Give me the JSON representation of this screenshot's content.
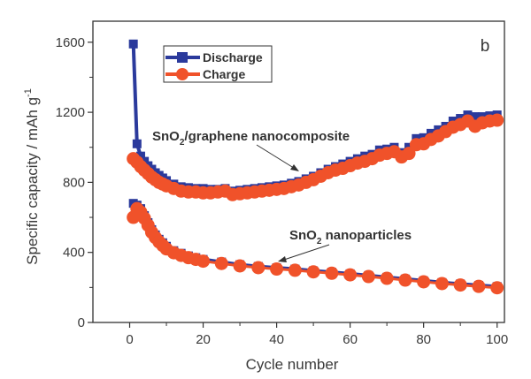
{
  "chart_data": {
    "type": "line",
    "title": "",
    "panel_label": "b",
    "xlabel": "Cycle number",
    "ylabel": "Specific capacity / mAh g",
    "ylabel_superscript": "-1",
    "xlim": [
      -10,
      102
    ],
    "ylim": [
      0,
      1720
    ],
    "xticks": [
      0,
      20,
      40,
      60,
      80,
      100
    ],
    "xtick_labels": [
      "0",
      "20",
      "40",
      "60",
      "80",
      "100"
    ],
    "xminor_ticks": [
      10,
      30,
      50,
      70,
      90
    ],
    "yticks": [
      0,
      400,
      800,
      1200,
      1600
    ],
    "ytick_labels": [
      "0",
      "400",
      "800",
      "1200",
      "1600"
    ],
    "yminor_ticks": [
      200,
      600,
      1000,
      1400
    ],
    "grid": false,
    "legend": {
      "placement": "top-left",
      "entries": [
        {
          "label": "Discharge",
          "marker": "square",
          "color": "#2b3a9c"
        },
        {
          "label": "Charge",
          "marker": "circle",
          "color": "#f0522a"
        }
      ]
    },
    "annotations": [
      {
        "text_main": "SnO",
        "subscript": "2",
        "text_rest": "/graphene nanocomposite",
        "target": "SnO2/graphene nanocomposite curves",
        "arrow_to": [
          48,
          770
        ]
      },
      {
        "text_main": "SnO",
        "subscript": "2",
        "text_rest": " nanoparticles",
        "target": "SnO2 nanoparticles curves",
        "arrow_to": [
          38,
          318
        ]
      }
    ],
    "series": [
      {
        "name": "SnO2/graphene nanocomposite - Discharge",
        "color": "#2b3a9c",
        "x": [
          1,
          2,
          3,
          4,
          5,
          6,
          7,
          8,
          9,
          10,
          12,
          14,
          16,
          18,
          20,
          22,
          24,
          26,
          28,
          30,
          32,
          34,
          36,
          38,
          40,
          42,
          44,
          46,
          48,
          50,
          52,
          54,
          56,
          58,
          60,
          62,
          64,
          66,
          68,
          70,
          72,
          74,
          76,
          78,
          80,
          82,
          84,
          86,
          88,
          90,
          92,
          94,
          96,
          98,
          100
        ],
        "y": [
          1590,
          1020,
          950,
          920,
          895,
          875,
          855,
          840,
          825,
          810,
          790,
          775,
          770,
          765,
          765,
          760,
          760,
          765,
          750,
          755,
          760,
          765,
          770,
          775,
          780,
          785,
          795,
          805,
          820,
          835,
          855,
          875,
          890,
          905,
          920,
          935,
          950,
          960,
          985,
          990,
          1000,
          970,
          1000,
          1050,
          1055,
          1080,
          1100,
          1120,
          1150,
          1165,
          1185,
          1175,
          1175,
          1180,
          1185
        ]
      },
      {
        "name": "SnO2/graphene nanocomposite - Charge",
        "color": "#f0522a",
        "x": [
          1,
          2,
          3,
          4,
          5,
          6,
          7,
          8,
          9,
          10,
          12,
          14,
          16,
          18,
          20,
          22,
          24,
          26,
          28,
          30,
          32,
          34,
          36,
          38,
          40,
          42,
          44,
          46,
          48,
          50,
          52,
          54,
          56,
          58,
          60,
          62,
          64,
          66,
          68,
          70,
          72,
          74,
          76,
          78,
          80,
          82,
          84,
          86,
          88,
          90,
          92,
          94,
          96,
          98,
          100
        ],
        "y": [
          935,
          915,
          890,
          870,
          850,
          830,
          815,
          800,
          790,
          780,
          765,
          750,
          745,
          745,
          740,
          740,
          745,
          750,
          730,
          735,
          740,
          745,
          750,
          755,
          760,
          765,
          775,
          785,
          800,
          815,
          835,
          855,
          870,
          880,
          895,
          910,
          920,
          935,
          955,
          965,
          975,
          945,
          965,
          1015,
          1020,
          1045,
          1065,
          1090,
          1115,
          1130,
          1150,
          1120,
          1140,
          1150,
          1155
        ]
      },
      {
        "name": "SnO2 nanoparticles - Discharge",
        "color": "#2b3a9c",
        "x": [
          1,
          2,
          3,
          4,
          5,
          6,
          7,
          8,
          9,
          10,
          12,
          14,
          16,
          18,
          20,
          25,
          30,
          35,
          40,
          45,
          50,
          55,
          60,
          65,
          70,
          75,
          80,
          85,
          90,
          95,
          100
        ],
        "y": [
          680,
          670,
          650,
          610,
          570,
          530,
          500,
          475,
          455,
          435,
          410,
          395,
          380,
          370,
          360,
          345,
          330,
          320,
          312,
          305,
          295,
          287,
          278,
          268,
          258,
          248,
          238,
          228,
          220,
          212,
          205
        ]
      },
      {
        "name": "SnO2 nanoparticles - Charge",
        "color": "#f0522a",
        "x": [
          1,
          2,
          3,
          4,
          5,
          6,
          7,
          8,
          9,
          10,
          12,
          14,
          16,
          18,
          20,
          25,
          30,
          35,
          40,
          45,
          50,
          55,
          60,
          65,
          70,
          75,
          80,
          85,
          90,
          95,
          100
        ],
        "y": [
          600,
          650,
          630,
          595,
          555,
          515,
          485,
          460,
          440,
          420,
          398,
          383,
          370,
          360,
          350,
          337,
          323,
          313,
          305,
          298,
          289,
          281,
          272,
          262,
          252,
          242,
          232,
          222,
          214,
          206,
          198
        ]
      }
    ]
  }
}
